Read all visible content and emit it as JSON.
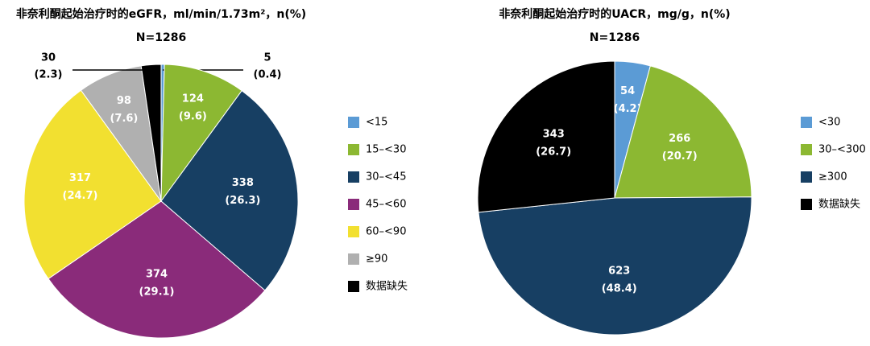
{
  "chart_data": [
    {
      "type": "pie",
      "title": "非奈利酮起始治疗时的eGFR，ml/min/1.73m²，n(%)",
      "subtitle": "N=1286",
      "categories": [
        "<15",
        "15–<30",
        "30–<45",
        "45–<60",
        "60–<90",
        "≥90",
        "数据缺失"
      ],
      "values": [
        5,
        124,
        338,
        374,
        317,
        98,
        30
      ],
      "percents": [
        0.4,
        9.6,
        26.3,
        29.1,
        24.7,
        7.6,
        2.3
      ],
      "percent_labels": [
        "(0.4)",
        "(9.6)",
        "(26.3)",
        "(29.1)",
        "(24.7)",
        "(7.6)",
        "(2.3)"
      ],
      "colors": [
        "#5b9bd5",
        "#8cb832",
        "#173f63",
        "#8a2b7a",
        "#f2e030",
        "#b0b0b0",
        "#000000"
      ]
    },
    {
      "type": "pie",
      "title": "非奈利酮起始治疗时的UACR，mg/g，n(%)",
      "subtitle": "N=1286",
      "categories": [
        "<30",
        "30–<300",
        "≥300",
        "数据缺失"
      ],
      "values": [
        54,
        266,
        623,
        343
      ],
      "percents": [
        4.2,
        20.7,
        48.4,
        26.7
      ],
      "percent_labels": [
        "(4.2)",
        "(20.7)",
        "(48.4)",
        "(26.7)"
      ],
      "colors": [
        "#5b9bd5",
        "#8cb832",
        "#173f63",
        "#000000"
      ]
    }
  ]
}
